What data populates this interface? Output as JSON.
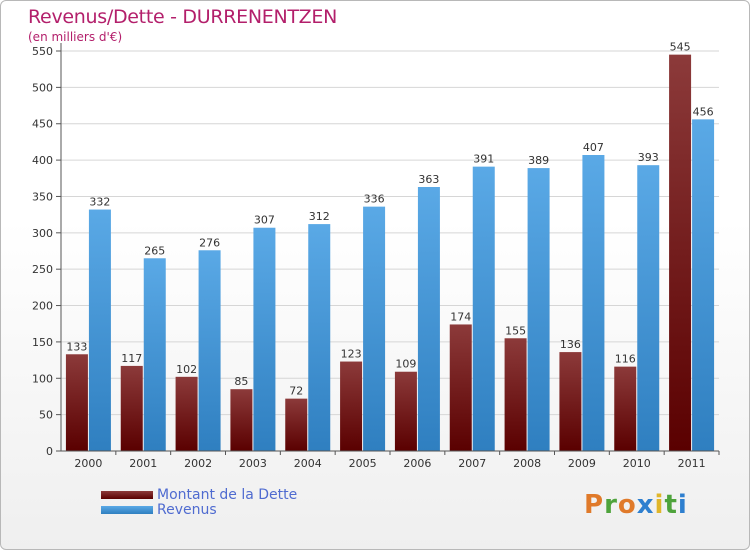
{
  "title": "Revenus/Dette - DURRENENTZEN",
  "subtitle": "(en milliers d'€)",
  "logo": {
    "text": "Proxiti",
    "letter_colors": [
      "#e07a2a",
      "#4ea33b",
      "#e07a2a",
      "#2e7fcf",
      "#e0b62a",
      "#4ea33b",
      "#2e7fcf"
    ]
  },
  "colors": {
    "title": "#b31f6b",
    "dette_top": "#8c3a3a",
    "dette_bottom": "#5a0000",
    "revenus_top": "#5aa9e6",
    "revenus_bottom": "#2f7fc0",
    "axis_text": "#333333",
    "legend_text": "#4f6bd0"
  },
  "chart_data": {
    "type": "bar",
    "categories": [
      "2000",
      "2001",
      "2002",
      "2003",
      "2004",
      "2005",
      "2006",
      "2007",
      "2008",
      "2009",
      "2010",
      "2011"
    ],
    "series": [
      {
        "name": "Montant de la Dette",
        "values": [
          133,
          117,
          102,
          85,
          72,
          123,
          109,
          174,
          155,
          136,
          116,
          545
        ]
      },
      {
        "name": "Revenus",
        "values": [
          332,
          265,
          276,
          307,
          312,
          336,
          363,
          391,
          389,
          407,
          393,
          456
        ]
      }
    ],
    "ylim": [
      0,
      550
    ],
    "yticks": [
      0,
      50,
      100,
      150,
      200,
      250,
      300,
      350,
      400,
      450,
      500,
      550
    ],
    "grid": true,
    "legend_position": "bottom-left"
  }
}
